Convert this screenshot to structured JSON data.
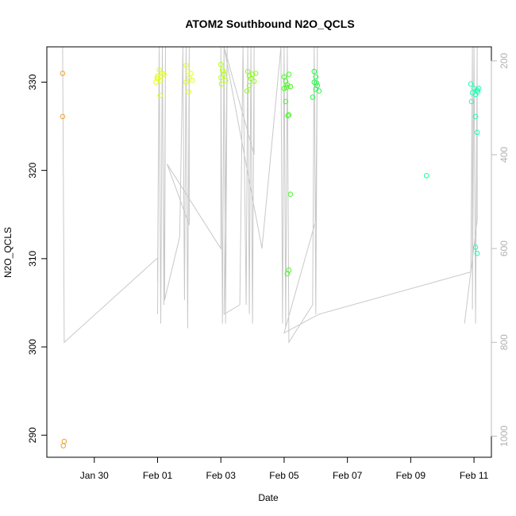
{
  "chart_data": {
    "type": "scatter",
    "title": "ATOM2 Southbound N2O_QCLS",
    "xlabel": "Date",
    "ylabel": "N2O_QCLS",
    "x_ticks": [
      "Jan 30",
      "Feb 01",
      "Feb 03",
      "Feb 05",
      "Feb 07",
      "Feb 09",
      "Feb 11"
    ],
    "x_tick_values": [
      1.5,
      3.5,
      5.5,
      7.5,
      9.5,
      11.5,
      13.5
    ],
    "x_range": [
      0,
      14.05
    ],
    "ylim": [
      287.5,
      334
    ],
    "y_ticks": [
      290,
      300,
      310,
      320,
      330
    ],
    "y2_ticks": [
      200,
      400,
      600,
      800,
      1000
    ],
    "y2lim": [
      1045,
      170
    ],
    "grid": false,
    "points": [
      {
        "x": 0.5,
        "y": 331.0,
        "color": "#f0a030"
      },
      {
        "x": 0.5,
        "y": 326.1,
        "color": "#f0a030"
      },
      {
        "x": 0.55,
        "y": 289.3,
        "color": "#f0a030"
      },
      {
        "x": 0.52,
        "y": 288.8,
        "color": "#f0a030"
      },
      {
        "x": 3.55,
        "y": 331.4,
        "color": "#e6ff1a"
      },
      {
        "x": 3.5,
        "y": 330.7,
        "color": "#e6ff1a"
      },
      {
        "x": 3.6,
        "y": 330.2,
        "color": "#e6ff1a"
      },
      {
        "x": 3.45,
        "y": 330.0,
        "color": "#e6ff1a"
      },
      {
        "x": 3.65,
        "y": 331.0,
        "color": "#e6ff1a"
      },
      {
        "x": 3.52,
        "y": 330.4,
        "color": "#e6ff1a"
      },
      {
        "x": 3.7,
        "y": 330.9,
        "color": "#e6ff1a"
      },
      {
        "x": 3.58,
        "y": 328.5,
        "color": "#e6ff1a"
      },
      {
        "x": 3.48,
        "y": 330.5,
        "color": "#e6ff1a"
      },
      {
        "x": 4.4,
        "y": 331.9,
        "color": "#e6ff1a"
      },
      {
        "x": 4.45,
        "y": 331.2,
        "color": "#e6ff1a"
      },
      {
        "x": 4.5,
        "y": 330.5,
        "color": "#e6ff1a"
      },
      {
        "x": 4.4,
        "y": 330.0,
        "color": "#e6ff1a"
      },
      {
        "x": 4.55,
        "y": 331.0,
        "color": "#e6ff1a"
      },
      {
        "x": 4.48,
        "y": 328.9,
        "color": "#e6ff1a"
      },
      {
        "x": 4.6,
        "y": 330.2,
        "color": "#e6ff1a"
      },
      {
        "x": 5.5,
        "y": 332.0,
        "color": "#b8ff1a"
      },
      {
        "x": 5.55,
        "y": 331.4,
        "color": "#b8ff1a"
      },
      {
        "x": 5.6,
        "y": 330.9,
        "color": "#b8ff1a"
      },
      {
        "x": 5.5,
        "y": 330.5,
        "color": "#b8ff1a"
      },
      {
        "x": 5.65,
        "y": 330.2,
        "color": "#b8ff1a"
      },
      {
        "x": 5.52,
        "y": 329.8,
        "color": "#b8ff1a"
      },
      {
        "x": 5.58,
        "y": 331.2,
        "color": "#b8ff1a"
      },
      {
        "x": 6.35,
        "y": 331.2,
        "color": "#8cff1a"
      },
      {
        "x": 6.4,
        "y": 330.7,
        "color": "#8cff1a"
      },
      {
        "x": 6.5,
        "y": 330.9,
        "color": "#8cff1a"
      },
      {
        "x": 6.45,
        "y": 330.4,
        "color": "#8cff1a"
      },
      {
        "x": 6.55,
        "y": 330.1,
        "color": "#8cff1a"
      },
      {
        "x": 6.4,
        "y": 329.6,
        "color": "#8cff1a"
      },
      {
        "x": 6.33,
        "y": 329.0,
        "color": "#8cff1a"
      },
      {
        "x": 6.6,
        "y": 331.0,
        "color": "#8cff1a"
      },
      {
        "x": 7.5,
        "y": 330.6,
        "color": "#40ff1a"
      },
      {
        "x": 7.55,
        "y": 330.1,
        "color": "#40ff1a"
      },
      {
        "x": 7.6,
        "y": 329.7,
        "color": "#40ff1a"
      },
      {
        "x": 7.5,
        "y": 329.3,
        "color": "#40ff1a"
      },
      {
        "x": 7.65,
        "y": 330.9,
        "color": "#40ff1a"
      },
      {
        "x": 7.58,
        "y": 329.4,
        "color": "#40ff1a"
      },
      {
        "x": 7.7,
        "y": 329.5,
        "color": "#40ff1a"
      },
      {
        "x": 7.55,
        "y": 327.8,
        "color": "#40ff1a"
      },
      {
        "x": 7.65,
        "y": 326.3,
        "color": "#40ff1a"
      },
      {
        "x": 7.62,
        "y": 326.2,
        "color": "#40ff1a"
      },
      {
        "x": 7.7,
        "y": 317.3,
        "color": "#40ff1a"
      },
      {
        "x": 7.65,
        "y": 308.7,
        "color": "#40ff1a"
      },
      {
        "x": 7.6,
        "y": 308.3,
        "color": "#40ff1a"
      },
      {
        "x": 8.45,
        "y": 331.2,
        "color": "#1aff40"
      },
      {
        "x": 8.5,
        "y": 330.6,
        "color": "#1aff40"
      },
      {
        "x": 8.45,
        "y": 330.0,
        "color": "#1aff40"
      },
      {
        "x": 8.55,
        "y": 329.6,
        "color": "#1aff40"
      },
      {
        "x": 8.5,
        "y": 329.2,
        "color": "#1aff40"
      },
      {
        "x": 8.6,
        "y": 329.0,
        "color": "#1aff40"
      },
      {
        "x": 8.4,
        "y": 328.3,
        "color": "#1aff40"
      },
      {
        "x": 8.52,
        "y": 329.9,
        "color": "#1aff40"
      },
      {
        "x": 12.0,
        "y": 319.4,
        "color": "#1aff90"
      },
      {
        "x": 13.4,
        "y": 329.8,
        "color": "#1affb0"
      },
      {
        "x": 13.5,
        "y": 329.3,
        "color": "#1affb0"
      },
      {
        "x": 13.6,
        "y": 329.1,
        "color": "#1affb0"
      },
      {
        "x": 13.45,
        "y": 328.8,
        "color": "#1affb0"
      },
      {
        "x": 13.55,
        "y": 328.6,
        "color": "#1affb0"
      },
      {
        "x": 13.62,
        "y": 328.9,
        "color": "#1affb0"
      },
      {
        "x": 13.65,
        "y": 329.3,
        "color": "#1affb0"
      },
      {
        "x": 13.42,
        "y": 327.8,
        "color": "#1affb0"
      },
      {
        "x": 13.55,
        "y": 326.1,
        "color": "#1affb0"
      },
      {
        "x": 13.6,
        "y": 324.3,
        "color": "#1affb0"
      },
      {
        "x": 13.55,
        "y": 311.3,
        "color": "#1affb0"
      },
      {
        "x": 13.6,
        "y": 310.6,
        "color": "#1affb0"
      }
    ],
    "path_color": "#c8c8c8",
    "path_values_y2": [
      [
        0.5,
        170
      ],
      [
        0.55,
        800
      ],
      [
        3.5,
        620
      ],
      [
        3.5,
        670
      ],
      [
        3.55,
        170
      ],
      [
        3.5,
        740
      ],
      [
        3.55,
        170
      ],
      [
        3.6,
        760
      ],
      [
        3.65,
        170
      ],
      [
        3.7,
        720
      ],
      [
        3.75,
        170
      ],
      [
        3.72,
        710
      ],
      [
        4.2,
        575
      ],
      [
        4.3,
        170
      ],
      [
        4.35,
        710
      ],
      [
        4.4,
        170
      ],
      [
        4.45,
        770
      ],
      [
        4.5,
        170
      ],
      [
        4.5,
        550
      ],
      [
        3.8,
        420
      ],
      [
        5.5,
        600
      ],
      [
        5.5,
        170
      ],
      [
        5.55,
        760
      ],
      [
        5.6,
        170
      ],
      [
        5.65,
        760
      ],
      [
        5.7,
        170
      ],
      [
        5.6,
        740
      ],
      [
        6.1,
        720
      ],
      [
        6.2,
        170
      ],
      [
        6.3,
        720
      ],
      [
        6.35,
        170
      ],
      [
        6.4,
        740
      ],
      [
        6.45,
        170
      ],
      [
        6.5,
        760
      ],
      [
        6.55,
        170
      ],
      [
        6.55,
        400
      ],
      [
        5.6,
        170
      ],
      [
        6.8,
        600
      ],
      [
        7.4,
        170
      ],
      [
        7.45,
        760
      ],
      [
        7.5,
        170
      ],
      [
        7.55,
        770
      ],
      [
        7.6,
        170
      ],
      [
        7.65,
        800
      ],
      [
        8.4,
        720
      ],
      [
        8.45,
        170
      ],
      [
        8.5,
        740
      ],
      [
        8.55,
        170
      ],
      [
        8.5,
        540
      ],
      [
        7.5,
        780
      ],
      [
        8.6,
        740
      ],
      [
        13.4,
        650
      ],
      [
        13.45,
        170
      ],
      [
        13.45,
        730
      ],
      [
        13.5,
        170
      ],
      [
        13.55,
        760
      ],
      [
        13.6,
        170
      ],
      [
        13.6,
        540
      ],
      [
        13.2,
        760
      ]
    ]
  }
}
